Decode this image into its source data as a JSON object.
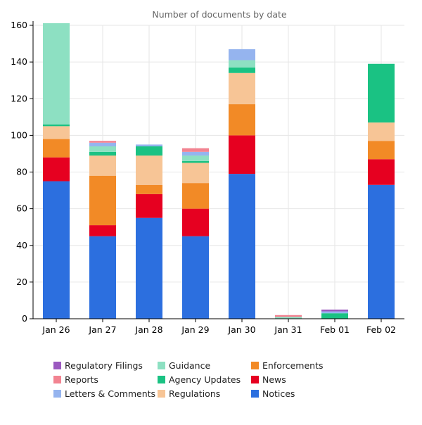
{
  "chart_data": {
    "type": "bar",
    "stacked": true,
    "title": "Number of documents by date",
    "xlabel": "",
    "ylabel": "",
    "ylim": [
      0,
      160
    ],
    "yticks": [
      0,
      20,
      40,
      60,
      80,
      100,
      120,
      140,
      160
    ],
    "grid": true,
    "legend_position": "bottom",
    "categories": [
      "Jan 26",
      "Jan 27",
      "Jan 28",
      "Jan 29",
      "Jan 30",
      "Jan 31",
      "Feb 01",
      "Feb 02"
    ],
    "series": [
      {
        "name": "Notices",
        "color": "#2c6fdf",
        "values": [
          75,
          45,
          55,
          45,
          79,
          0,
          0,
          73
        ]
      },
      {
        "name": "News",
        "color": "#e60020",
        "values": [
          13,
          6,
          13,
          15,
          21,
          0,
          0,
          14
        ]
      },
      {
        "name": "Enforcements",
        "color": "#f28a26",
        "values": [
          10,
          27,
          5,
          14,
          17,
          0,
          0,
          10
        ]
      },
      {
        "name": "Regulations",
        "color": "#f7c596",
        "values": [
          7,
          11,
          16,
          11,
          17,
          0,
          0,
          10
        ]
      },
      {
        "name": "Agency Updates",
        "color": "#1ac283",
        "values": [
          1,
          2,
          5,
          1,
          3,
          0,
          3,
          32
        ]
      },
      {
        "name": "Guidance",
        "color": "#8de0c2",
        "values": [
          56,
          3,
          0,
          3,
          4,
          1,
          0,
          0
        ]
      },
      {
        "name": "Letters & Comments",
        "color": "#95b4ef",
        "values": [
          0,
          2,
          1,
          2,
          6,
          0,
          1,
          0
        ]
      },
      {
        "name": "Reports",
        "color": "#f28391",
        "values": [
          0,
          1,
          0,
          2,
          0,
          1,
          0,
          0
        ]
      },
      {
        "name": "Regulatory Filings",
        "color": "#9b59c0",
        "values": [
          0,
          0,
          0,
          0,
          0,
          0,
          1,
          0
        ]
      }
    ],
    "legend_order": [
      "Regulatory Filings",
      "Reports",
      "Letters & Comments",
      "Guidance",
      "Agency Updates",
      "Regulations",
      "Enforcements",
      "News",
      "Notices"
    ]
  }
}
